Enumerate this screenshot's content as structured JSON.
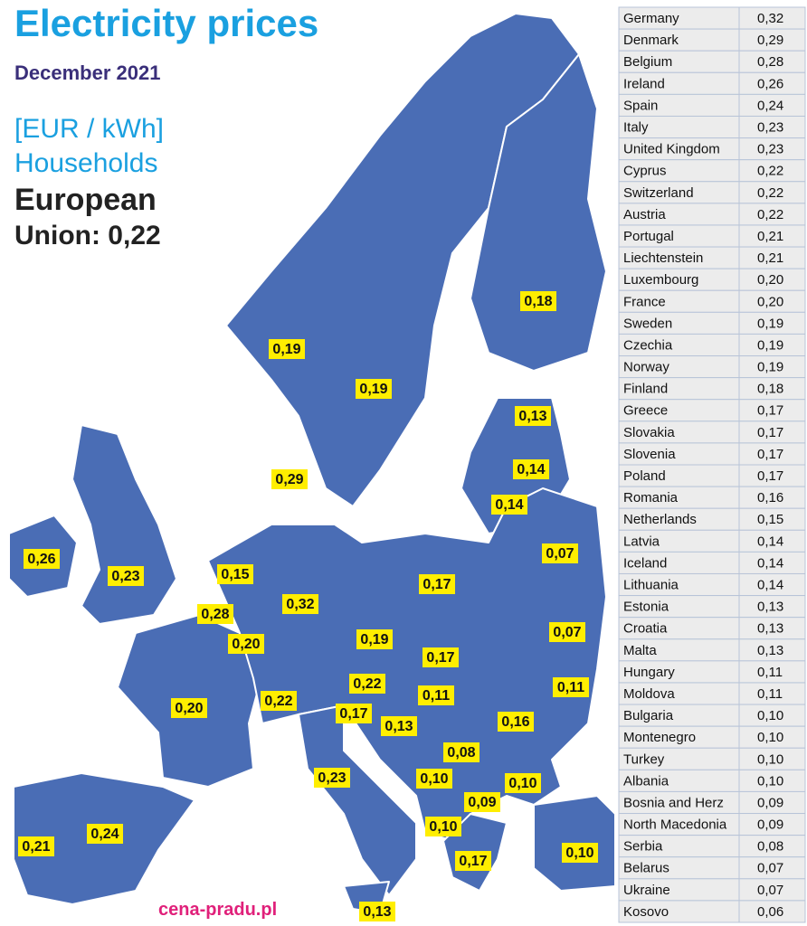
{
  "header": {
    "title": "Electricity prices",
    "subtitle": "December 2021",
    "unit": "[EUR / kWh]",
    "segment": "Households",
    "eu_label": "European",
    "eu_value": "Union: 0,22"
  },
  "source": "cena-pradu.pl",
  "map_labels": [
    "0,18",
    "0,19",
    "0,19",
    "0,13",
    "0,14",
    "0,29",
    "0,14",
    "0,26",
    "0,07",
    "0,15",
    "0,23",
    "0,17",
    "0,32",
    "0,28",
    "0,07",
    "0,20",
    "0,19",
    "0,17",
    "0,22",
    "0,11",
    "0,22",
    "0,11",
    "0,20",
    "0,17",
    "0,16",
    "0,13",
    "0,08",
    "0,23",
    "0,10",
    "0,10",
    "0,09",
    "0,24",
    "0,10",
    "0,21",
    "0,10",
    "0,17",
    "0,13"
  ],
  "table": {
    "rows": [
      [
        "Germany",
        "0,32"
      ],
      [
        "Denmark",
        "0,29"
      ],
      [
        "Belgium",
        "0,28"
      ],
      [
        "Ireland",
        "0,26"
      ],
      [
        "Spain",
        "0,24"
      ],
      [
        "Italy",
        "0,23"
      ],
      [
        "United Kingdom",
        "0,23"
      ],
      [
        "Cyprus",
        "0,22"
      ],
      [
        "Switzerland",
        "0,22"
      ],
      [
        "Austria",
        "0,22"
      ],
      [
        "Portugal",
        "0,21"
      ],
      [
        "Liechtenstein",
        "0,21"
      ],
      [
        "Luxembourg",
        "0,20"
      ],
      [
        "France",
        "0,20"
      ],
      [
        "Sweden",
        "0,19"
      ],
      [
        "Czechia",
        "0,19"
      ],
      [
        "Norway",
        "0,19"
      ],
      [
        "Finland",
        "0,18"
      ],
      [
        "Greece",
        "0,17"
      ],
      [
        "Slovakia",
        "0,17"
      ],
      [
        "Slovenia",
        "0,17"
      ],
      [
        "Poland",
        "0,17"
      ],
      [
        "Romania",
        "0,16"
      ],
      [
        "Netherlands",
        "0,15"
      ],
      [
        "Latvia",
        "0,14"
      ],
      [
        "Iceland",
        "0,14"
      ],
      [
        "Lithuania",
        "0,14"
      ],
      [
        "Estonia",
        "0,13"
      ],
      [
        "Croatia",
        "0,13"
      ],
      [
        "Malta",
        "0,13"
      ],
      [
        "Hungary",
        "0,11"
      ],
      [
        "Moldova",
        "0,11"
      ],
      [
        "Bulgaria",
        "0,10"
      ],
      [
        "Montenegro",
        "0,10"
      ],
      [
        "Turkey",
        "0,10"
      ],
      [
        "Albania",
        "0,10"
      ],
      [
        "Bosnia and Herz",
        "0,09"
      ],
      [
        "North Macedonia",
        "0,09"
      ],
      [
        "Serbia",
        "0,08"
      ],
      [
        "Belarus",
        "0,07"
      ],
      [
        "Ukraine",
        "0,07"
      ],
      [
        "Kosovo",
        "0,06"
      ]
    ]
  }
}
